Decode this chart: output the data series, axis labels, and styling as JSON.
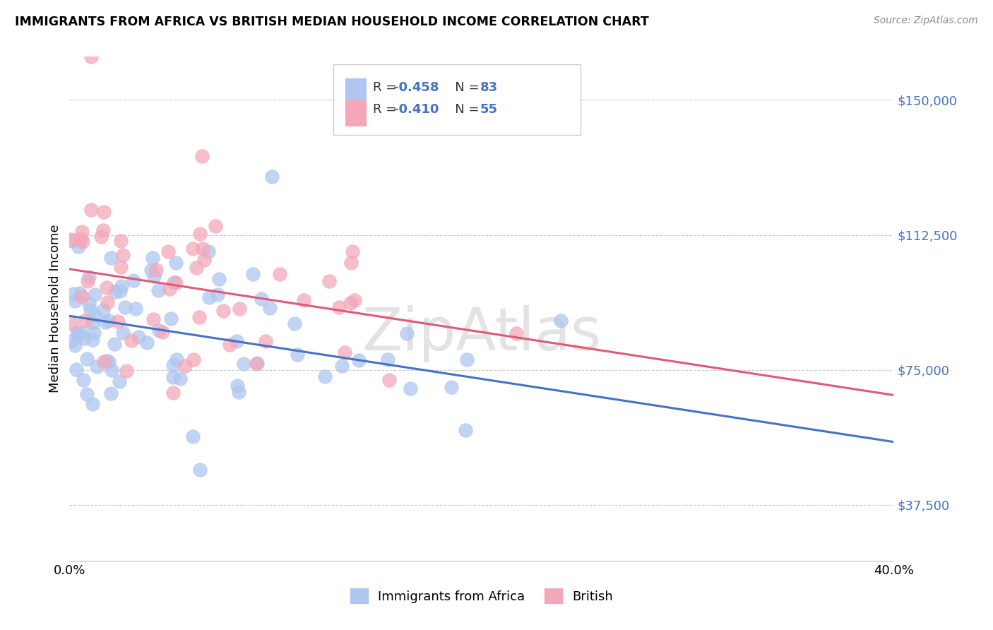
{
  "title": "IMMIGRANTS FROM AFRICA VS BRITISH MEDIAN HOUSEHOLD INCOME CORRELATION CHART",
  "source": "Source: ZipAtlas.com",
  "ylabel": "Median Household Income",
  "yticks": [
    37500,
    75000,
    112500,
    150000
  ],
  "ytick_labels": [
    "$37,500",
    "$75,000",
    "$112,500",
    "$150,000"
  ],
  "xlim": [
    0.0,
    0.4
  ],
  "ylim": [
    22000,
    162000
  ],
  "legend_R_blue": "-0.458",
  "legend_N_blue": "83",
  "legend_R_pink": "-0.410",
  "legend_N_pink": "55",
  "label_blue": "Immigrants from Africa",
  "label_pink": "British",
  "watermark": "ZipAtlas",
  "background_color": "#ffffff",
  "grid_color": "#cccccc",
  "blue_color": "#4472c4",
  "pink_color": "#e05a75",
  "dot_blue": "#aec6f0",
  "dot_pink": "#f4a7b9",
  "line_blue": "#4472c4",
  "line_pink": "#e05a75",
  "line_blue_y0": 90000,
  "line_blue_y1": 55000,
  "line_pink_y0": 103000,
  "line_pink_y1": 68000,
  "seed": 42,
  "N_blue": 83,
  "N_pink": 55
}
